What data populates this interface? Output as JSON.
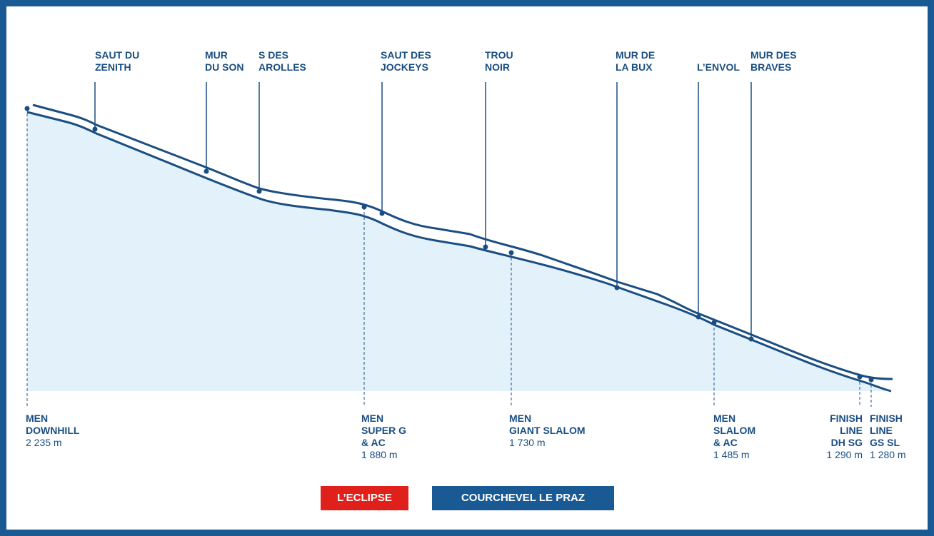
{
  "colors": {
    "frame": "#1a5a94",
    "line": "#1a4e82",
    "fill": "#e3f1fb",
    "red_track": "#e0201b",
    "blue_track": "#1a5a94"
  },
  "features": [
    {
      "id": "saut-du-zenith",
      "lines": [
        "SAUT DU",
        "ZENITH"
      ]
    },
    {
      "id": "mur-du-son",
      "lines": [
        "MUR",
        "DU SON"
      ]
    },
    {
      "id": "s-des-arolles",
      "lines": [
        "S DES",
        "AROLLES"
      ]
    },
    {
      "id": "saut-des-jockeys",
      "lines": [
        "SAUT DES",
        "JOCKEYS"
      ]
    },
    {
      "id": "trou-noir",
      "lines": [
        "TROU",
        "NOIR"
      ]
    },
    {
      "id": "mur-de-la-bux",
      "lines": [
        "MUR DE",
        "LA BUX"
      ]
    },
    {
      "id": "lenvol",
      "lines": [
        "L’ENVOL"
      ]
    },
    {
      "id": "mur-des-braves",
      "lines": [
        "MUR DES",
        "BRAVES"
      ]
    }
  ],
  "starts": [
    {
      "id": "men-downhill",
      "lines": [
        "MEN",
        "DOWNHILL"
      ],
      "elevation": "2 235 m"
    },
    {
      "id": "men-super-g",
      "lines": [
        "MEN",
        "SUPER G",
        "& AC"
      ],
      "elevation": "1 880 m"
    },
    {
      "id": "men-giant-slalom",
      "lines": [
        "MEN",
        "GIANT SLALOM"
      ],
      "elevation": "1 730 m"
    },
    {
      "id": "men-slalom",
      "lines": [
        "MEN",
        "SLALOM",
        "& AC"
      ],
      "elevation": "1 485 m"
    },
    {
      "id": "finish-dh-sg",
      "lines": [
        "FINISH",
        "LINE",
        "DH SG"
      ],
      "elevation": "1 290 m"
    },
    {
      "id": "finish-gs-sl",
      "lines": [
        "FINISH",
        "LINE",
        "GS SL"
      ],
      "elevation": "1 280 m"
    }
  ],
  "legend": {
    "red": "L’ECLIPSE",
    "blue": "COURCHEVEL LE PRAZ"
  }
}
